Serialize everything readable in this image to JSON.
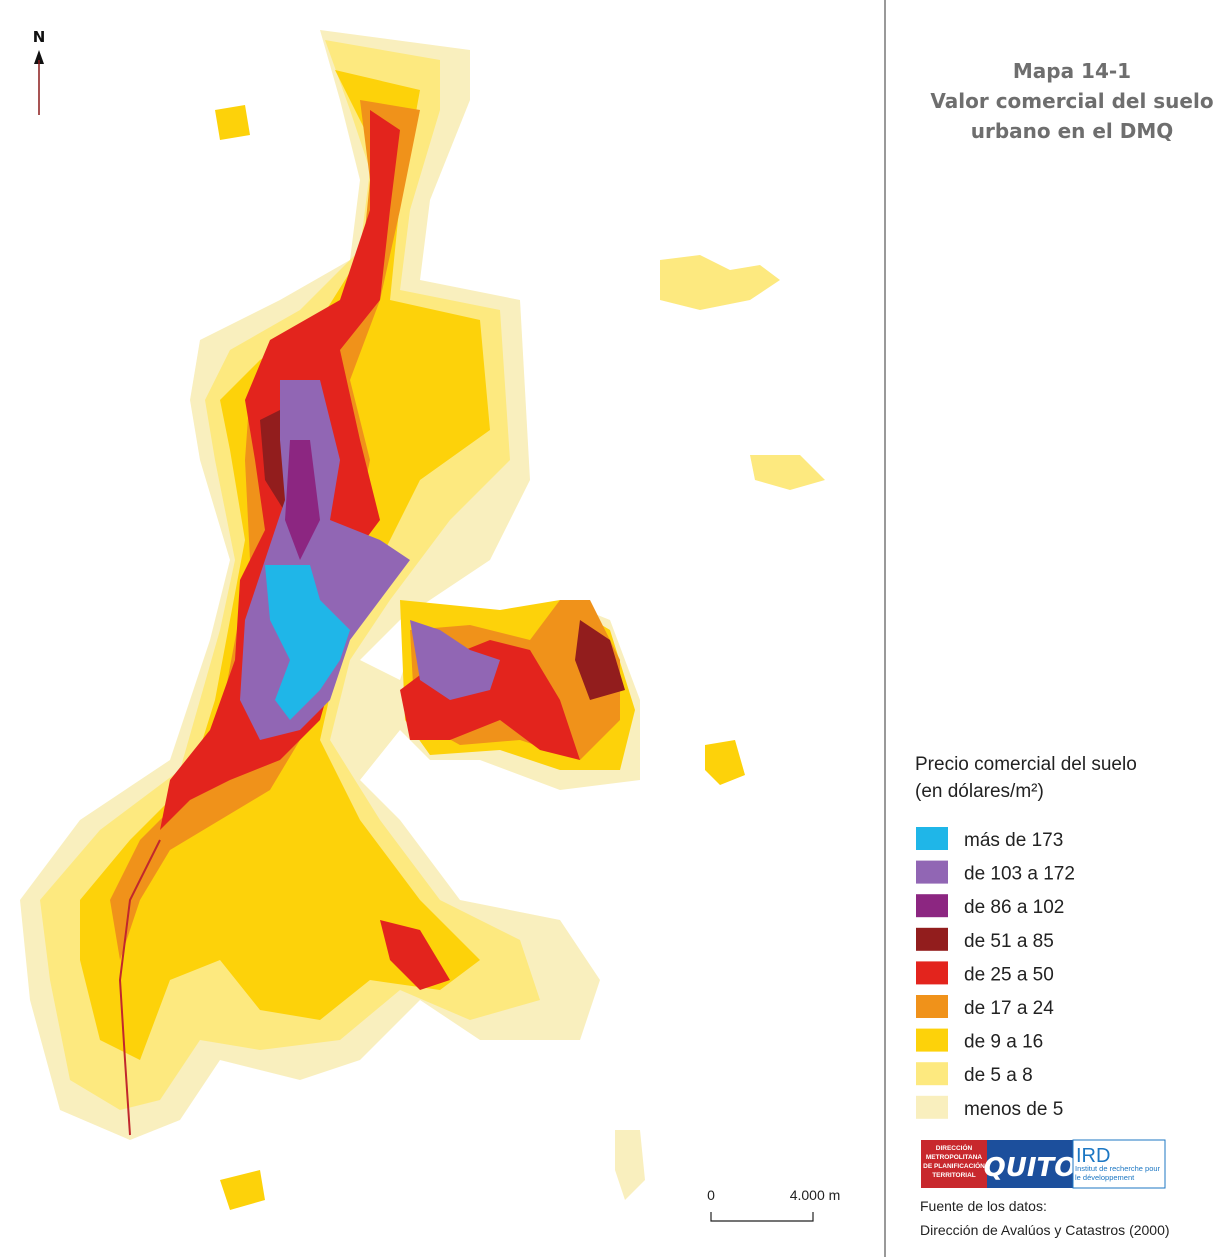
{
  "header": {
    "title_lines": [
      "Mapa 14-1",
      "Valor comercial del suelo",
      "urbano en el DMQ"
    ]
  },
  "north_arrow": {
    "label": "N"
  },
  "legend": {
    "title_lines": [
      "Precio comercial del suelo",
      "(en dólares/m²)"
    ],
    "items": [
      {
        "label": "más de 173",
        "color": "#1fb6e8"
      },
      {
        "label": "de 103 a 172",
        "color": "#9166b4"
      },
      {
        "label": "de 86 a 102",
        "color": "#8c2681"
      },
      {
        "label": "de 51 a 85",
        "color": "#921d1d"
      },
      {
        "label": "de 25 a 50",
        "color": "#e3241d"
      },
      {
        "label": "de 17 a 24",
        "color": "#f0921a"
      },
      {
        "label": "de 9 a 16",
        "color": "#fdd20a"
      },
      {
        "label": "de 5 a 8",
        "color": "#fde97f"
      },
      {
        "label": "menos de 5",
        "color": "#f9efbe"
      }
    ]
  },
  "scale_bar": {
    "start_label": "0",
    "end_label": "4.000 m"
  },
  "logos": {
    "dmpt": "DIRECCIÓN METROPOLITANA DE PLANIFICACIÓN TERRITORIAL",
    "quito": "QUITO",
    "ird": "IRD",
    "ird_sub": "Institut de recherche pour le développement"
  },
  "source": {
    "lines": [
      "Fuente de los datos:",
      "Dirección de Avalúos y Catastros (2000)"
    ]
  }
}
